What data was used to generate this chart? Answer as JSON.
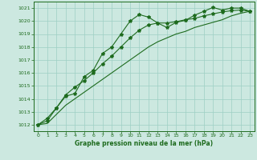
{
  "title": "Graphe pression niveau de la mer (hPa)",
  "bg_color": "#cce8e0",
  "grid_color": "#9ecfc4",
  "line_color": "#1e6b1e",
  "xlim": [
    -0.5,
    23.5
  ],
  "ylim": [
    1011.5,
    1021.5
  ],
  "xticks": [
    0,
    1,
    2,
    3,
    4,
    5,
    6,
    7,
    8,
    9,
    10,
    11,
    12,
    13,
    14,
    15,
    16,
    17,
    18,
    19,
    20,
    21,
    22,
    23
  ],
  "yticks": [
    1012,
    1013,
    1014,
    1015,
    1016,
    1017,
    1018,
    1019,
    1020,
    1021
  ],
  "series1_x": [
    0,
    1,
    2,
    3,
    4,
    5,
    6,
    7,
    8,
    9,
    10,
    11,
    12,
    13,
    14,
    15,
    16,
    17,
    18,
    19,
    20,
    21,
    22,
    23
  ],
  "series1_y": [
    1012.0,
    1012.5,
    1013.3,
    1014.2,
    1014.4,
    1015.7,
    1016.2,
    1017.5,
    1018.0,
    1019.0,
    1020.0,
    1020.5,
    1020.3,
    1019.85,
    1019.5,
    1019.9,
    1020.05,
    1020.45,
    1020.75,
    1021.05,
    1020.85,
    1021.0,
    1021.0,
    1020.75
  ],
  "series2_x": [
    0,
    1,
    2,
    3,
    4,
    5,
    6,
    7,
    8,
    9,
    10,
    11,
    12,
    13,
    14,
    15,
    16,
    17,
    18,
    19,
    20,
    21,
    22,
    23
  ],
  "series2_y": [
    1012.0,
    1012.3,
    1013.3,
    1014.3,
    1014.9,
    1015.4,
    1016.0,
    1016.7,
    1017.3,
    1018.0,
    1018.7,
    1019.3,
    1019.7,
    1019.85,
    1019.85,
    1019.95,
    1020.1,
    1020.2,
    1020.4,
    1020.55,
    1020.7,
    1020.8,
    1020.85,
    1020.75
  ],
  "series3_x": [
    0,
    1,
    2,
    3,
    4,
    5,
    6,
    7,
    8,
    9,
    10,
    11,
    12,
    13,
    14,
    15,
    16,
    17,
    18,
    19,
    20,
    21,
    22,
    23
  ],
  "series3_y": [
    1012.0,
    1012.1,
    1012.8,
    1013.5,
    1014.0,
    1014.5,
    1015.0,
    1015.5,
    1016.0,
    1016.5,
    1017.0,
    1017.5,
    1018.0,
    1018.4,
    1018.7,
    1019.0,
    1019.2,
    1019.5,
    1019.7,
    1019.9,
    1020.1,
    1020.4,
    1020.6,
    1020.75
  ]
}
